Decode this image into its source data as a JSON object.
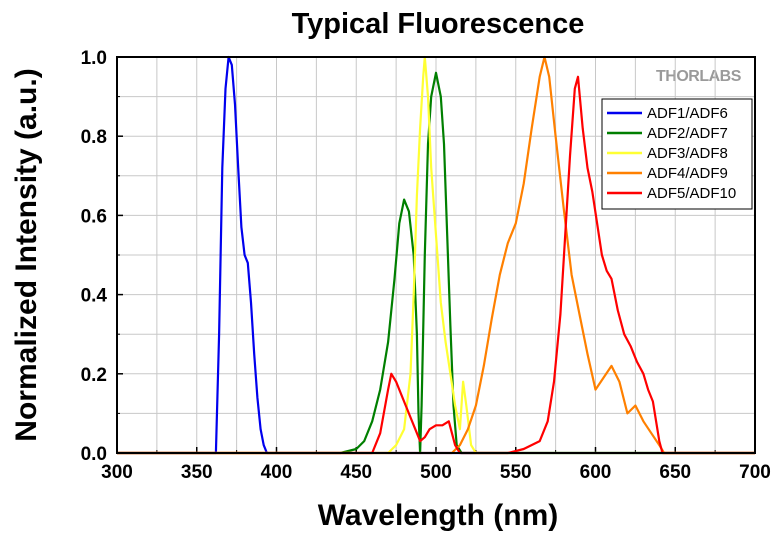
{
  "chart_data": {
    "type": "line",
    "title": "Typical Fluorescence",
    "xlabel": "Wavelength (nm)",
    "ylabel": "Normalized Intensity (a.u.)",
    "xlim": [
      300,
      700
    ],
    "ylim": [
      0,
      1.0
    ],
    "xticks": [
      "300",
      "350",
      "400",
      "450",
      "500",
      "550",
      "600",
      "650",
      "700"
    ],
    "yticks": [
      "0.0",
      "0.2",
      "0.4",
      "0.6",
      "0.8",
      "1.0"
    ],
    "grid": true,
    "legend_position": "top-right",
    "watermark": "THORLABS",
    "series": [
      {
        "name": "ADF1/ADF6",
        "color": "#0000ee",
        "points": [
          [
            300,
            0
          ],
          [
            362,
            0
          ],
          [
            364,
            0.3
          ],
          [
            366,
            0.72
          ],
          [
            368,
            0.92
          ],
          [
            370,
            1.0
          ],
          [
            372,
            0.98
          ],
          [
            374,
            0.88
          ],
          [
            376,
            0.72
          ],
          [
            378,
            0.57
          ],
          [
            380,
            0.5
          ],
          [
            382,
            0.48
          ],
          [
            384,
            0.38
          ],
          [
            386,
            0.25
          ],
          [
            388,
            0.14
          ],
          [
            390,
            0.06
          ],
          [
            392,
            0.02
          ],
          [
            394,
            0
          ],
          [
            700,
            0
          ]
        ]
      },
      {
        "name": "ADF2/ADF7",
        "color": "#007f00",
        "points": [
          [
            300,
            0
          ],
          [
            440,
            0
          ],
          [
            450,
            0.01
          ],
          [
            455,
            0.03
          ],
          [
            460,
            0.08
          ],
          [
            465,
            0.16
          ],
          [
            470,
            0.28
          ],
          [
            474,
            0.44
          ],
          [
            477,
            0.58
          ],
          [
            480,
            0.64
          ],
          [
            483,
            0.61
          ],
          [
            486,
            0.5
          ],
          [
            488,
            0.3
          ],
          [
            489,
            0.1
          ],
          [
            490,
            0.0
          ],
          [
            491,
            0.12
          ],
          [
            493,
            0.5
          ],
          [
            495,
            0.78
          ],
          [
            497,
            0.9
          ],
          [
            500,
            0.96
          ],
          [
            503,
            0.9
          ],
          [
            505,
            0.78
          ],
          [
            507,
            0.55
          ],
          [
            509,
            0.32
          ],
          [
            511,
            0.12
          ],
          [
            513,
            0.02
          ],
          [
            516,
            0
          ],
          [
            700,
            0
          ]
        ]
      },
      {
        "name": "ADF3/ADF8",
        "color": "#ffff33",
        "points": [
          [
            300,
            0
          ],
          [
            470,
            0
          ],
          [
            475,
            0.02
          ],
          [
            480,
            0.06
          ],
          [
            484,
            0.2
          ],
          [
            486,
            0.4
          ],
          [
            488,
            0.65
          ],
          [
            490,
            0.82
          ],
          [
            492,
            0.95
          ],
          [
            493,
            1.0
          ],
          [
            495,
            0.9
          ],
          [
            497,
            0.72
          ],
          [
            500,
            0.55
          ],
          [
            503,
            0.38
          ],
          [
            506,
            0.28
          ],
          [
            509,
            0.2
          ],
          [
            512,
            0.12
          ],
          [
            515,
            0.06
          ],
          [
            517,
            0.18
          ],
          [
            519,
            0.12
          ],
          [
            522,
            0.02
          ],
          [
            525,
            0
          ],
          [
            700,
            0
          ]
        ]
      },
      {
        "name": "ADF4/ADF9",
        "color": "#ff8000",
        "points": [
          [
            300,
            0
          ],
          [
            510,
            0
          ],
          [
            515,
            0.02
          ],
          [
            520,
            0.06
          ],
          [
            525,
            0.12
          ],
          [
            530,
            0.22
          ],
          [
            535,
            0.34
          ],
          [
            540,
            0.45
          ],
          [
            545,
            0.53
          ],
          [
            550,
            0.58
          ],
          [
            555,
            0.68
          ],
          [
            560,
            0.82
          ],
          [
            565,
            0.95
          ],
          [
            568,
            1.0
          ],
          [
            571,
            0.95
          ],
          [
            575,
            0.8
          ],
          [
            580,
            0.62
          ],
          [
            585,
            0.45
          ],
          [
            590,
            0.35
          ],
          [
            595,
            0.25
          ],
          [
            600,
            0.16
          ],
          [
            605,
            0.19
          ],
          [
            610,
            0.22
          ],
          [
            615,
            0.18
          ],
          [
            620,
            0.1
          ],
          [
            625,
            0.12
          ],
          [
            630,
            0.08
          ],
          [
            635,
            0.05
          ],
          [
            640,
            0.02
          ],
          [
            643,
            0
          ],
          [
            700,
            0
          ]
        ]
      },
      {
        "name": "ADF5/ADF10",
        "color": "#ff0000",
        "points": [
          [
            300,
            0
          ],
          [
            460,
            0
          ],
          [
            465,
            0.05
          ],
          [
            470,
            0.16
          ],
          [
            472,
            0.2
          ],
          [
            475,
            0.18
          ],
          [
            478,
            0.15
          ],
          [
            481,
            0.12
          ],
          [
            484,
            0.09
          ],
          [
            487,
            0.06
          ],
          [
            490,
            0.03
          ],
          [
            493,
            0.04
          ],
          [
            496,
            0.06
          ],
          [
            500,
            0.07
          ],
          [
            504,
            0.07
          ],
          [
            508,
            0.08
          ],
          [
            512,
            0.02
          ],
          [
            515,
            0
          ],
          [
            545,
            0
          ],
          [
            555,
            0.01
          ],
          [
            565,
            0.03
          ],
          [
            570,
            0.08
          ],
          [
            574,
            0.18
          ],
          [
            578,
            0.35
          ],
          [
            581,
            0.55
          ],
          [
            584,
            0.75
          ],
          [
            587,
            0.92
          ],
          [
            589,
            0.95
          ],
          [
            592,
            0.82
          ],
          [
            595,
            0.72
          ],
          [
            598,
            0.66
          ],
          [
            601,
            0.58
          ],
          [
            604,
            0.5
          ],
          [
            607,
            0.46
          ],
          [
            610,
            0.44
          ],
          [
            614,
            0.36
          ],
          [
            618,
            0.3
          ],
          [
            622,
            0.27
          ],
          [
            626,
            0.23
          ],
          [
            630,
            0.2
          ],
          [
            633,
            0.16
          ],
          [
            636,
            0.13
          ],
          [
            638,
            0.08
          ],
          [
            640,
            0.03
          ],
          [
            642,
            0
          ],
          [
            700,
            0
          ]
        ]
      }
    ]
  }
}
